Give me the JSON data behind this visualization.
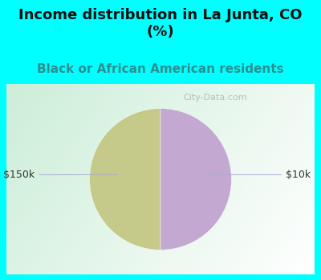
{
  "title": "Income distribution in La Junta, CO\n(%)",
  "subtitle": "Black or African American residents",
  "slices": [
    {
      "label": "$150k",
      "value": 50,
      "color": "#c5c98a"
    },
    {
      "label": "$10k",
      "value": 50,
      "color": "#c3a8d1"
    }
  ],
  "bg_cyan": "#00ffff",
  "title_color": "#111111",
  "subtitle_color": "#2a9090",
  "label_color": "#333333",
  "watermark": "City-Data.com",
  "title_fontsize": 13,
  "subtitle_fontsize": 11,
  "label_fontsize": 9,
  "watermark_fontsize": 8
}
